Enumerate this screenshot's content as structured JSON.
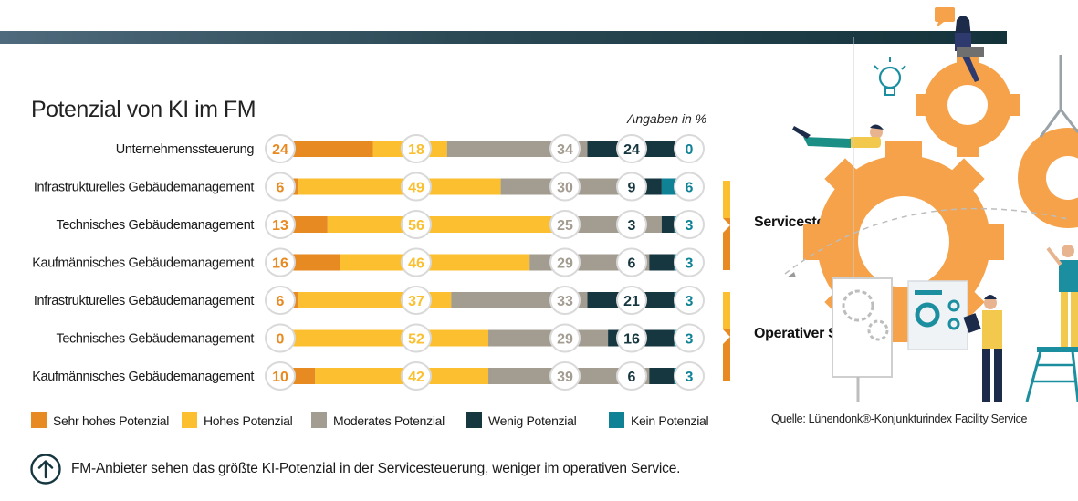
{
  "title": "Potenzial von KI im FM",
  "unit_note": "Angaben in %",
  "colors": {
    "sehr_hoch": "#e88a22",
    "hoch": "#fbbf2f",
    "moderat": "#a39c91",
    "wenig": "#163640",
    "kein": "#0f8296",
    "bar_bg": "#e6e6e6"
  },
  "chart_data": {
    "type": "bar",
    "orientation": "horizontal",
    "stacked": true,
    "title": "Potenzial von KI im FM",
    "unit": "Angaben in %",
    "categories": [
      "Unternehmenssteuerung",
      "Infrastrukturelles Gebäudemanagement",
      "Technisches Gebäudemanagement",
      "Kaufmännisches Gebäudemanagement",
      "Infrastrukturelles Gebäudemanagement",
      "Technisches Gebäudemanagement",
      "Kaufmännisches Gebäudemanagement"
    ],
    "series": [
      {
        "name": "Sehr hohes Potenzial",
        "values": [
          24,
          6,
          13,
          16,
          6,
          0,
          10
        ]
      },
      {
        "name": "Hohes Potenzial",
        "values": [
          18,
          49,
          56,
          46,
          37,
          52,
          42
        ]
      },
      {
        "name": "Moderates Potenzial",
        "values": [
          34,
          30,
          25,
          29,
          33,
          29,
          39
        ]
      },
      {
        "name": "Wenig Potenzial",
        "values": [
          24,
          9,
          3,
          6,
          21,
          16,
          6
        ]
      },
      {
        "name": "Kein Potenzial",
        "values": [
          0,
          6,
          3,
          3,
          3,
          3,
          3
        ]
      }
    ],
    "groups": [
      {
        "name": "Servicesteuerung",
        "rows": [
          1,
          2,
          3
        ]
      },
      {
        "name": "Operativer Service",
        "rows": [
          4,
          5,
          6
        ]
      }
    ],
    "legend_position": "bottom"
  },
  "source": "Quelle: Lünendonk®-Konjunkturindex Facility Service",
  "note": "FM-Anbieter sehen das größte KI-Potenzial in der Servicesteuerung, weniger im operativen Service."
}
